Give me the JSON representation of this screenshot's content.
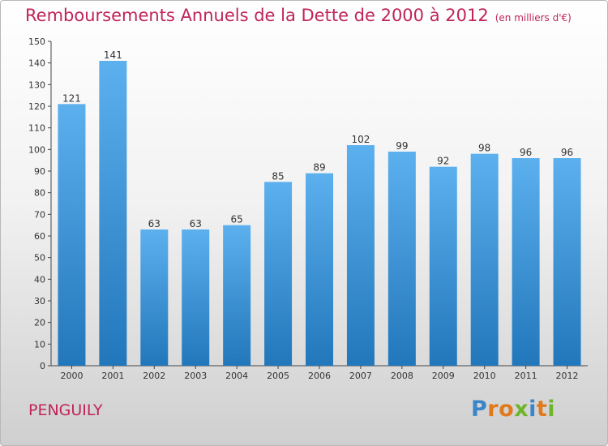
{
  "header": {
    "title": "Remboursements Annuels de la Dette de 2000 à 2012",
    "unit": "(en milliers d'€)"
  },
  "footer": {
    "commune": "PENGUILY",
    "brand_letters": [
      "P",
      "r",
      "o",
      "x",
      "i",
      "t",
      "i"
    ],
    "brand_colors": [
      "#3a86c8",
      "#e07a1b",
      "#e07a1b",
      "#6fb52c",
      "#3a86c8",
      "#e07a1b",
      "#6fb52c"
    ]
  },
  "colors": {
    "title": "#c0245a",
    "bar_light": "#5cb0ee",
    "bar_dark": "#2277bb"
  },
  "chart_data": {
    "type": "bar",
    "title": "Remboursements Annuels de la Dette de 2000 à 2012",
    "xlabel": "",
    "ylabel": "",
    "categories": [
      "2000",
      "2001",
      "2002",
      "2003",
      "2004",
      "2005",
      "2006",
      "2007",
      "2008",
      "2009",
      "2010",
      "2011",
      "2012"
    ],
    "values": [
      121,
      141,
      63,
      63,
      65,
      85,
      89,
      102,
      99,
      92,
      98,
      96,
      96
    ],
    "data_labels": [
      "121",
      "141",
      "63",
      "63",
      "65",
      "85",
      "89",
      "102",
      "99",
      "92",
      "98",
      "96",
      "96"
    ],
    "ylim": [
      0,
      150
    ],
    "yticks": [
      0,
      10,
      20,
      30,
      40,
      50,
      60,
      70,
      80,
      90,
      100,
      110,
      120,
      130,
      140,
      150
    ],
    "grid": false,
    "legend": "none"
  }
}
